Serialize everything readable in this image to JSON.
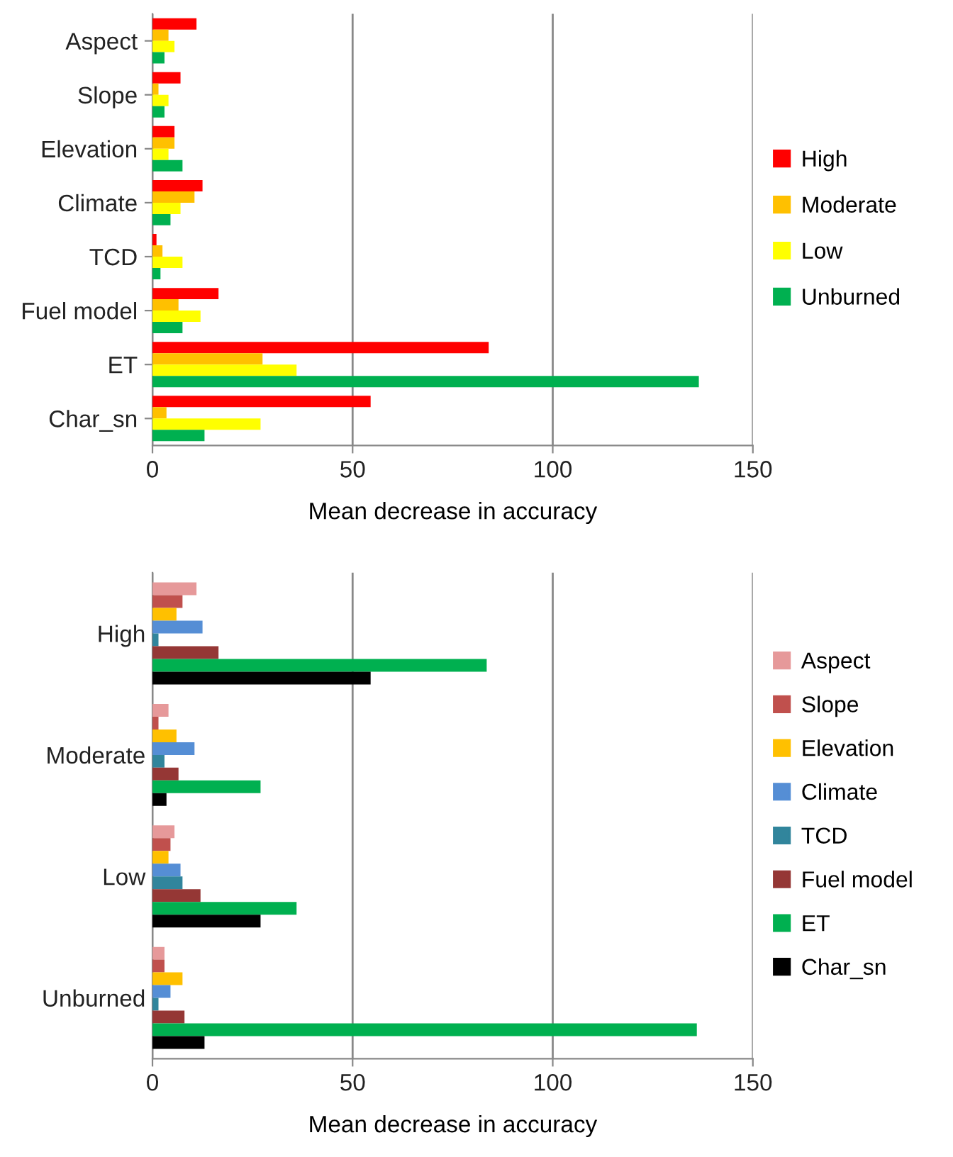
{
  "chart_data": [
    {
      "type": "bar",
      "orientation": "horizontal",
      "xlabel": "Mean decrease in accuracy",
      "categories": [
        "Aspect",
        "Slope",
        "Elevation",
        "Climate",
        "TCD",
        "Fuel model",
        "ET",
        "Char_sn"
      ],
      "series": [
        {
          "name": "High",
          "color": "#ff0000",
          "values": [
            11,
            7,
            5.5,
            12.5,
            1,
            16.5,
            84,
            54.5
          ]
        },
        {
          "name": "Moderate",
          "color": "#ffc000",
          "values": [
            4,
            1.5,
            5.5,
            10.5,
            2.5,
            6.5,
            27.5,
            3.5
          ]
        },
        {
          "name": "Low",
          "color": "#ffff00",
          "values": [
            5.5,
            4,
            4,
            7,
            7.5,
            12,
            36,
            27
          ]
        },
        {
          "name": "Unburned",
          "color": "#00b050",
          "values": [
            3,
            3,
            7.5,
            4.5,
            2,
            7.5,
            136.5,
            13
          ]
        }
      ],
      "xlim": [
        0,
        150
      ],
      "xticks": [
        0,
        50,
        100,
        150
      ],
      "grid": "x",
      "legend": "right"
    },
    {
      "type": "bar",
      "orientation": "horizontal",
      "xlabel": "Mean decrease in accuracy",
      "categories": [
        "High",
        "Moderate",
        "Low",
        "Unburned"
      ],
      "series": [
        {
          "name": "Aspect",
          "color": "#e6999a",
          "values": [
            11,
            4,
            5.5,
            3
          ]
        },
        {
          "name": "Slope",
          "color": "#c0504d",
          "values": [
            7.5,
            1.5,
            4.5,
            3
          ]
        },
        {
          "name": "Elevation",
          "color": "#ffc000",
          "values": [
            6,
            6,
            4,
            7.5
          ]
        },
        {
          "name": "Climate",
          "color": "#558ed5",
          "values": [
            12.5,
            10.5,
            7,
            4.5
          ]
        },
        {
          "name": "TCD",
          "color": "#31859c",
          "values": [
            1.5,
            3,
            7.5,
            1.5
          ]
        },
        {
          "name": "Fuel model",
          "color": "#953735",
          "values": [
            16.5,
            6.5,
            12,
            8
          ]
        },
        {
          "name": "ET",
          "color": "#00b050",
          "values": [
            83.5,
            27,
            36,
            136
          ]
        },
        {
          "name": "Char_sn",
          "color": "#000000",
          "values": [
            54.5,
            3.5,
            27,
            13
          ]
        }
      ],
      "xlim": [
        0,
        150
      ],
      "xticks": [
        0,
        50,
        100,
        150
      ],
      "grid": "x",
      "legend": "right"
    }
  ]
}
